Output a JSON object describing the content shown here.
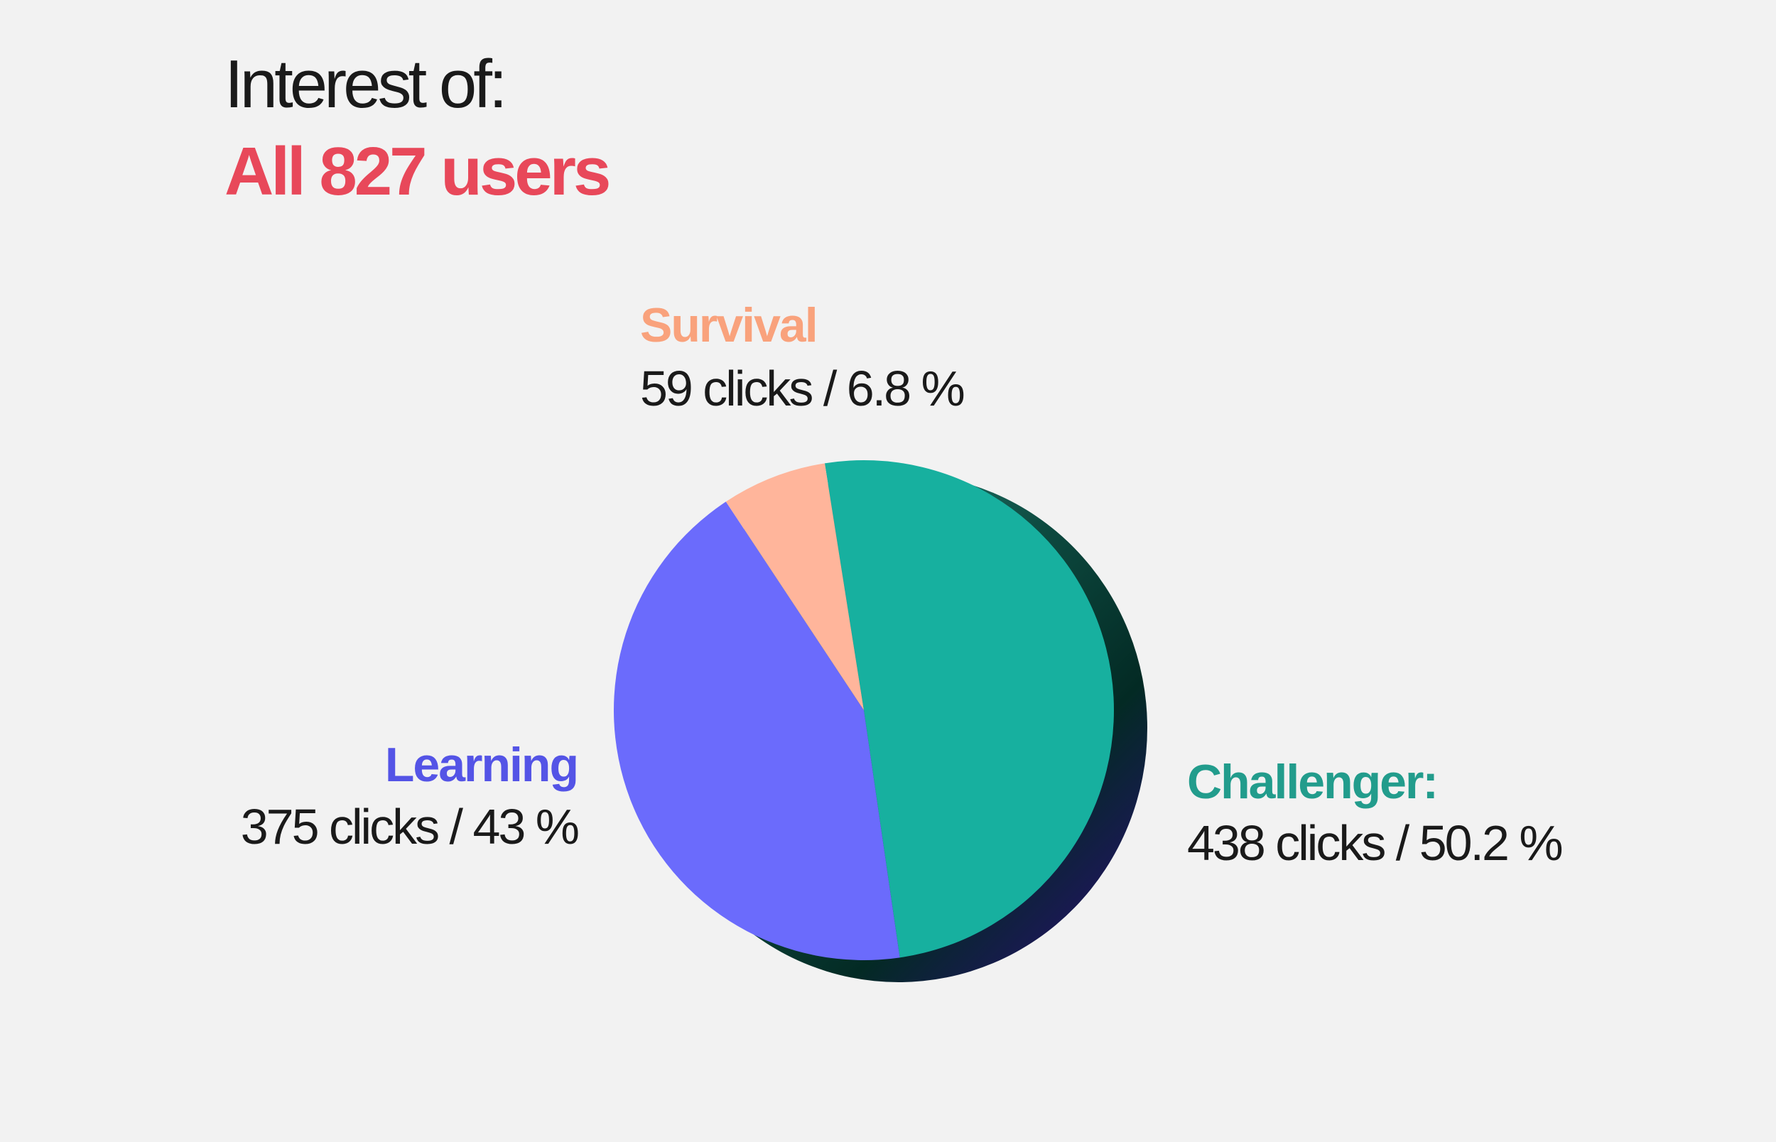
{
  "chart_data": {
    "type": "pie",
    "title": "Interest of:",
    "subtitle": "All 827 users",
    "categories": [
      "Challenger:",
      "Learning",
      "Survival"
    ],
    "values": [
      50.2,
      43,
      6.8
    ],
    "value_labels": [
      "438 clicks / 50.2 %",
      "375 clicks / 43 %",
      "59 clicks / 6.8 %"
    ],
    "colors": [
      "#17b09f",
      "#6b6bfc",
      "#ffb59b"
    ],
    "label_colors": [
      "#229c8c",
      "#5454e6",
      "#f9a27c"
    ]
  }
}
